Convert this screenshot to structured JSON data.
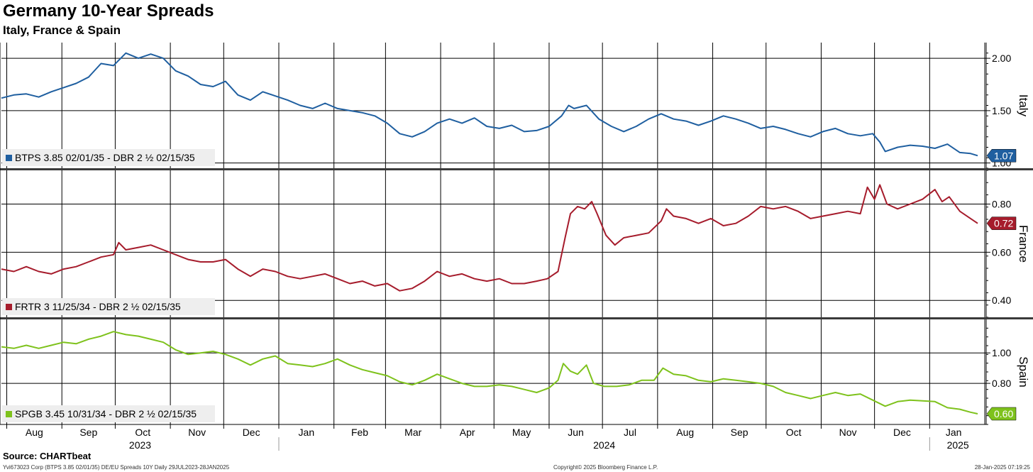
{
  "header": {
    "title": "Germany 10-Year Spreads",
    "subtitle": "Italy, France & Spain"
  },
  "footer": {
    "source": "Source: CHARTbeat",
    "ticker": "Yvi673023 Corp (BTPS 3.85 02/01/35) DE/EU Spreads 10Y  Daily 29JUL2023-28JAN2025",
    "copyright": "Copyright© 2025 Bloomberg Finance L.P.",
    "timestamp": "28-Jan-2025 07:19:25"
  },
  "chart_data": {
    "type": "line",
    "x_months": [
      "Aug",
      "Sep",
      "Oct",
      "Nov",
      "Dec",
      "Jan",
      "Feb",
      "Mar",
      "Apr",
      "May",
      "Jun",
      "Jul",
      "Aug",
      "Sep",
      "Oct",
      "Nov",
      "Dec",
      "Jan"
    ],
    "x_years": [
      "2023",
      "2024",
      "2025"
    ],
    "x_range": [
      "2023-07-29",
      "2025-01-28"
    ],
    "panels": [
      {
        "name": "Italy",
        "legend": "BTPS 3.85 02/01/35 - DBR 2 ½ 02/15/35",
        "color": "#1f5fa0",
        "last_label": "1.07",
        "ylim": [
          0.95,
          2.15
        ],
        "yticks": [
          "2.00",
          "1.50",
          "1.00"
        ],
        "points": [
          [
            "2023-07-29",
            1.62
          ],
          [
            "2023-08-05",
            1.65
          ],
          [
            "2023-08-12",
            1.66
          ],
          [
            "2023-08-19",
            1.63
          ],
          [
            "2023-08-26",
            1.68
          ],
          [
            "2023-09-02",
            1.72
          ],
          [
            "2023-09-09",
            1.76
          ],
          [
            "2023-09-16",
            1.82
          ],
          [
            "2023-09-23",
            1.95
          ],
          [
            "2023-09-30",
            1.93
          ],
          [
            "2023-10-07",
            2.05
          ],
          [
            "2023-10-14",
            2.0
          ],
          [
            "2023-10-21",
            2.04
          ],
          [
            "2023-10-28",
            2.0
          ],
          [
            "2023-11-04",
            1.88
          ],
          [
            "2023-11-11",
            1.83
          ],
          [
            "2023-11-18",
            1.75
          ],
          [
            "2023-11-25",
            1.73
          ],
          [
            "2023-12-02",
            1.78
          ],
          [
            "2023-12-09",
            1.65
          ],
          [
            "2023-12-16",
            1.6
          ],
          [
            "2023-12-23",
            1.68
          ],
          [
            "2023-12-30",
            1.64
          ],
          [
            "2024-01-06",
            1.6
          ],
          [
            "2024-01-13",
            1.55
          ],
          [
            "2024-01-20",
            1.52
          ],
          [
            "2024-01-27",
            1.57
          ],
          [
            "2024-02-03",
            1.52
          ],
          [
            "2024-02-10",
            1.5
          ],
          [
            "2024-02-17",
            1.48
          ],
          [
            "2024-02-24",
            1.45
          ],
          [
            "2024-03-02",
            1.38
          ],
          [
            "2024-03-09",
            1.28
          ],
          [
            "2024-03-16",
            1.25
          ],
          [
            "2024-03-23",
            1.3
          ],
          [
            "2024-03-30",
            1.38
          ],
          [
            "2024-04-06",
            1.42
          ],
          [
            "2024-04-13",
            1.38
          ],
          [
            "2024-04-20",
            1.43
          ],
          [
            "2024-04-27",
            1.35
          ],
          [
            "2024-05-04",
            1.33
          ],
          [
            "2024-05-11",
            1.36
          ],
          [
            "2024-05-18",
            1.3
          ],
          [
            "2024-05-25",
            1.31
          ],
          [
            "2024-06-01",
            1.35
          ],
          [
            "2024-06-08",
            1.45
          ],
          [
            "2024-06-12",
            1.55
          ],
          [
            "2024-06-15",
            1.52
          ],
          [
            "2024-06-22",
            1.55
          ],
          [
            "2024-06-29",
            1.42
          ],
          [
            "2024-07-06",
            1.35
          ],
          [
            "2024-07-13",
            1.3
          ],
          [
            "2024-07-20",
            1.35
          ],
          [
            "2024-07-27",
            1.42
          ],
          [
            "2024-08-03",
            1.47
          ],
          [
            "2024-08-10",
            1.42
          ],
          [
            "2024-08-17",
            1.4
          ],
          [
            "2024-08-24",
            1.36
          ],
          [
            "2024-08-31",
            1.4
          ],
          [
            "2024-09-07",
            1.45
          ],
          [
            "2024-09-14",
            1.42
          ],
          [
            "2024-09-21",
            1.38
          ],
          [
            "2024-09-28",
            1.33
          ],
          [
            "2024-10-05",
            1.35
          ],
          [
            "2024-10-12",
            1.32
          ],
          [
            "2024-10-19",
            1.28
          ],
          [
            "2024-10-26",
            1.25
          ],
          [
            "2024-11-02",
            1.3
          ],
          [
            "2024-11-09",
            1.33
          ],
          [
            "2024-11-16",
            1.28
          ],
          [
            "2024-11-23",
            1.26
          ],
          [
            "2024-11-30",
            1.28
          ],
          [
            "2024-12-04",
            1.2
          ],
          [
            "2024-12-07",
            1.11
          ],
          [
            "2024-12-14",
            1.15
          ],
          [
            "2024-12-21",
            1.17
          ],
          [
            "2024-12-28",
            1.16
          ],
          [
            "2025-01-04",
            1.14
          ],
          [
            "2025-01-11",
            1.18
          ],
          [
            "2025-01-18",
            1.1
          ],
          [
            "2025-01-24",
            1.09
          ],
          [
            "2025-01-28",
            1.07
          ]
        ]
      },
      {
        "name": "France",
        "legend": "FRTR 3 11/25/34 - DBR 2 ½ 02/15/35",
        "color": "#a61c2c",
        "last_label": "0.72",
        "ylim": [
          0.33,
          0.94
        ],
        "yticks": [
          "0.80",
          "0.60",
          "0.40"
        ],
        "points": [
          [
            "2023-07-29",
            0.53
          ],
          [
            "2023-08-05",
            0.52
          ],
          [
            "2023-08-12",
            0.54
          ],
          [
            "2023-08-19",
            0.52
          ],
          [
            "2023-08-26",
            0.51
          ],
          [
            "2023-09-02",
            0.53
          ],
          [
            "2023-09-09",
            0.54
          ],
          [
            "2023-09-16",
            0.56
          ],
          [
            "2023-09-23",
            0.58
          ],
          [
            "2023-09-30",
            0.59
          ],
          [
            "2023-10-03",
            0.64
          ],
          [
            "2023-10-07",
            0.61
          ],
          [
            "2023-10-14",
            0.62
          ],
          [
            "2023-10-21",
            0.63
          ],
          [
            "2023-10-28",
            0.61
          ],
          [
            "2023-11-04",
            0.59
          ],
          [
            "2023-11-11",
            0.57
          ],
          [
            "2023-11-18",
            0.56
          ],
          [
            "2023-11-25",
            0.56
          ],
          [
            "2023-12-02",
            0.57
          ],
          [
            "2023-12-09",
            0.53
          ],
          [
            "2023-12-16",
            0.5
          ],
          [
            "2023-12-23",
            0.53
          ],
          [
            "2023-12-30",
            0.52
          ],
          [
            "2024-01-06",
            0.5
          ],
          [
            "2024-01-13",
            0.49
          ],
          [
            "2024-01-20",
            0.5
          ],
          [
            "2024-01-27",
            0.51
          ],
          [
            "2024-02-03",
            0.49
          ],
          [
            "2024-02-10",
            0.47
          ],
          [
            "2024-02-17",
            0.48
          ],
          [
            "2024-02-24",
            0.46
          ],
          [
            "2024-03-02",
            0.47
          ],
          [
            "2024-03-09",
            0.44
          ],
          [
            "2024-03-16",
            0.45
          ],
          [
            "2024-03-23",
            0.48
          ],
          [
            "2024-03-30",
            0.52
          ],
          [
            "2024-04-06",
            0.5
          ],
          [
            "2024-04-13",
            0.51
          ],
          [
            "2024-04-20",
            0.49
          ],
          [
            "2024-04-27",
            0.48
          ],
          [
            "2024-05-04",
            0.49
          ],
          [
            "2024-05-11",
            0.47
          ],
          [
            "2024-05-18",
            0.47
          ],
          [
            "2024-05-25",
            0.48
          ],
          [
            "2024-05-31",
            0.49
          ],
          [
            "2024-06-06",
            0.52
          ],
          [
            "2024-06-10",
            0.66
          ],
          [
            "2024-06-13",
            0.76
          ],
          [
            "2024-06-17",
            0.79
          ],
          [
            "2024-06-21",
            0.78
          ],
          [
            "2024-06-25",
            0.81
          ],
          [
            "2024-06-28",
            0.76
          ],
          [
            "2024-07-03",
            0.67
          ],
          [
            "2024-07-08",
            0.63
          ],
          [
            "2024-07-13",
            0.66
          ],
          [
            "2024-07-20",
            0.67
          ],
          [
            "2024-07-27",
            0.68
          ],
          [
            "2024-08-03",
            0.73
          ],
          [
            "2024-08-06",
            0.78
          ],
          [
            "2024-08-10",
            0.75
          ],
          [
            "2024-08-17",
            0.74
          ],
          [
            "2024-08-24",
            0.72
          ],
          [
            "2024-08-31",
            0.74
          ],
          [
            "2024-09-07",
            0.71
          ],
          [
            "2024-09-14",
            0.72
          ],
          [
            "2024-09-21",
            0.75
          ],
          [
            "2024-09-28",
            0.79
          ],
          [
            "2024-10-05",
            0.78
          ],
          [
            "2024-10-12",
            0.79
          ],
          [
            "2024-10-19",
            0.77
          ],
          [
            "2024-10-26",
            0.74
          ],
          [
            "2024-11-02",
            0.75
          ],
          [
            "2024-11-09",
            0.76
          ],
          [
            "2024-11-16",
            0.77
          ],
          [
            "2024-11-23",
            0.76
          ],
          [
            "2024-11-27",
            0.87
          ],
          [
            "2024-12-01",
            0.82
          ],
          [
            "2024-12-04",
            0.88
          ],
          [
            "2024-12-08",
            0.8
          ],
          [
            "2024-12-14",
            0.78
          ],
          [
            "2024-12-21",
            0.8
          ],
          [
            "2024-12-28",
            0.82
          ],
          [
            "2025-01-04",
            0.86
          ],
          [
            "2025-01-08",
            0.81
          ],
          [
            "2025-01-12",
            0.83
          ],
          [
            "2025-01-18",
            0.77
          ],
          [
            "2025-01-24",
            0.74
          ],
          [
            "2025-01-28",
            0.72
          ]
        ]
      },
      {
        "name": "Spain",
        "legend": "SPGB 3.45 10/31/34 - DBR 2 ½ 02/15/35",
        "color": "#7ec21c",
        "last_label": "0.60",
        "ylim": [
          0.53,
          1.22
        ],
        "yticks": [
          "1.00",
          "0.80"
        ],
        "points": [
          [
            "2023-07-29",
            1.04
          ],
          [
            "2023-08-05",
            1.03
          ],
          [
            "2023-08-12",
            1.05
          ],
          [
            "2023-08-19",
            1.03
          ],
          [
            "2023-08-26",
            1.05
          ],
          [
            "2023-09-02",
            1.07
          ],
          [
            "2023-09-09",
            1.06
          ],
          [
            "2023-09-16",
            1.09
          ],
          [
            "2023-09-23",
            1.11
          ],
          [
            "2023-09-30",
            1.14
          ],
          [
            "2023-10-07",
            1.12
          ],
          [
            "2023-10-14",
            1.11
          ],
          [
            "2023-10-21",
            1.09
          ],
          [
            "2023-10-28",
            1.07
          ],
          [
            "2023-11-04",
            1.02
          ],
          [
            "2023-11-11",
            0.99
          ],
          [
            "2023-11-18",
            1.0
          ],
          [
            "2023-11-25",
            1.01
          ],
          [
            "2023-12-02",
            0.99
          ],
          [
            "2023-12-09",
            0.96
          ],
          [
            "2023-12-16",
            0.92
          ],
          [
            "2023-12-23",
            0.96
          ],
          [
            "2023-12-30",
            0.98
          ],
          [
            "2024-01-06",
            0.93
          ],
          [
            "2024-01-13",
            0.92
          ],
          [
            "2024-01-20",
            0.91
          ],
          [
            "2024-01-27",
            0.93
          ],
          [
            "2024-02-03",
            0.96
          ],
          [
            "2024-02-10",
            0.92
          ],
          [
            "2024-02-17",
            0.89
          ],
          [
            "2024-02-24",
            0.87
          ],
          [
            "2024-03-02",
            0.85
          ],
          [
            "2024-03-09",
            0.81
          ],
          [
            "2024-03-16",
            0.79
          ],
          [
            "2024-03-23",
            0.82
          ],
          [
            "2024-03-30",
            0.86
          ],
          [
            "2024-04-06",
            0.83
          ],
          [
            "2024-04-13",
            0.8
          ],
          [
            "2024-04-20",
            0.78
          ],
          [
            "2024-04-27",
            0.78
          ],
          [
            "2024-05-04",
            0.79
          ],
          [
            "2024-05-11",
            0.78
          ],
          [
            "2024-05-18",
            0.76
          ],
          [
            "2024-05-25",
            0.74
          ],
          [
            "2024-06-01",
            0.77
          ],
          [
            "2024-06-06",
            0.82
          ],
          [
            "2024-06-09",
            0.93
          ],
          [
            "2024-06-13",
            0.88
          ],
          [
            "2024-06-17",
            0.86
          ],
          [
            "2024-06-22",
            0.92
          ],
          [
            "2024-06-26",
            0.8
          ],
          [
            "2024-07-02",
            0.78
          ],
          [
            "2024-07-09",
            0.78
          ],
          [
            "2024-07-16",
            0.79
          ],
          [
            "2024-07-23",
            0.82
          ],
          [
            "2024-07-30",
            0.82
          ],
          [
            "2024-08-04",
            0.9
          ],
          [
            "2024-08-10",
            0.86
          ],
          [
            "2024-08-17",
            0.85
          ],
          [
            "2024-08-24",
            0.82
          ],
          [
            "2024-08-31",
            0.81
          ],
          [
            "2024-09-07",
            0.83
          ],
          [
            "2024-09-14",
            0.82
          ],
          [
            "2024-09-21",
            0.81
          ],
          [
            "2024-09-28",
            0.8
          ],
          [
            "2024-10-05",
            0.78
          ],
          [
            "2024-10-12",
            0.74
          ],
          [
            "2024-10-19",
            0.72
          ],
          [
            "2024-10-26",
            0.7
          ],
          [
            "2024-11-02",
            0.72
          ],
          [
            "2024-11-09",
            0.74
          ],
          [
            "2024-11-16",
            0.72
          ],
          [
            "2024-11-23",
            0.73
          ],
          [
            "2024-11-30",
            0.69
          ],
          [
            "2024-12-07",
            0.65
          ],
          [
            "2024-12-14",
            0.68
          ],
          [
            "2024-12-21",
            0.69
          ],
          [
            "2025-01-04",
            0.68
          ],
          [
            "2025-01-11",
            0.64
          ],
          [
            "2025-01-18",
            0.63
          ],
          [
            "2025-01-24",
            0.61
          ],
          [
            "2025-01-28",
            0.6
          ]
        ]
      }
    ]
  }
}
